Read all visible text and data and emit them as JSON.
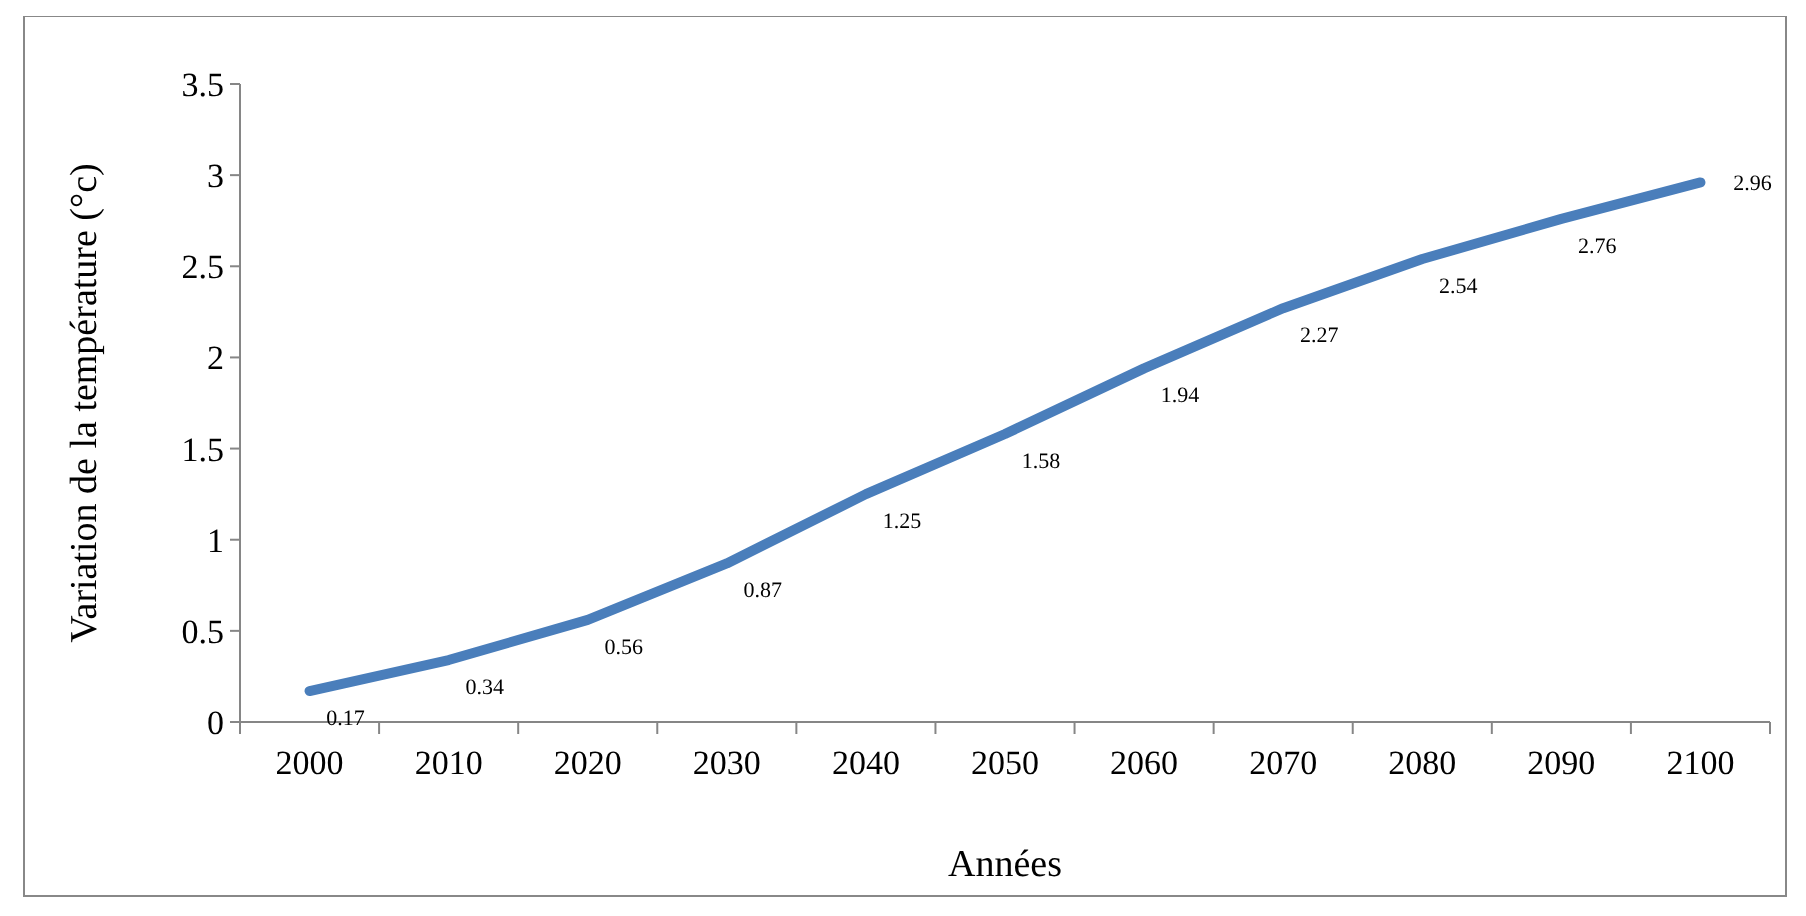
{
  "chart_data": {
    "type": "line",
    "xlabel": "Années",
    "ylabel": "Variation de la température (°c)",
    "categories": [
      "2000",
      "2010",
      "2020",
      "2030",
      "2040",
      "2050",
      "2060",
      "2070",
      "2080",
      "2090",
      "2100"
    ],
    "series": [
      {
        "color": "#4a7ebb",
        "values": [
          0.17,
          0.34,
          0.56,
          0.87,
          1.25,
          1.58,
          1.94,
          2.27,
          2.54,
          2.76,
          2.96
        ]
      }
    ],
    "ylim": [
      0,
      3.5
    ],
    "yticks": [
      0,
      0.5,
      1,
      1.5,
      2,
      2.5,
      3,
      3.5
    ],
    "data_labels": true
  }
}
